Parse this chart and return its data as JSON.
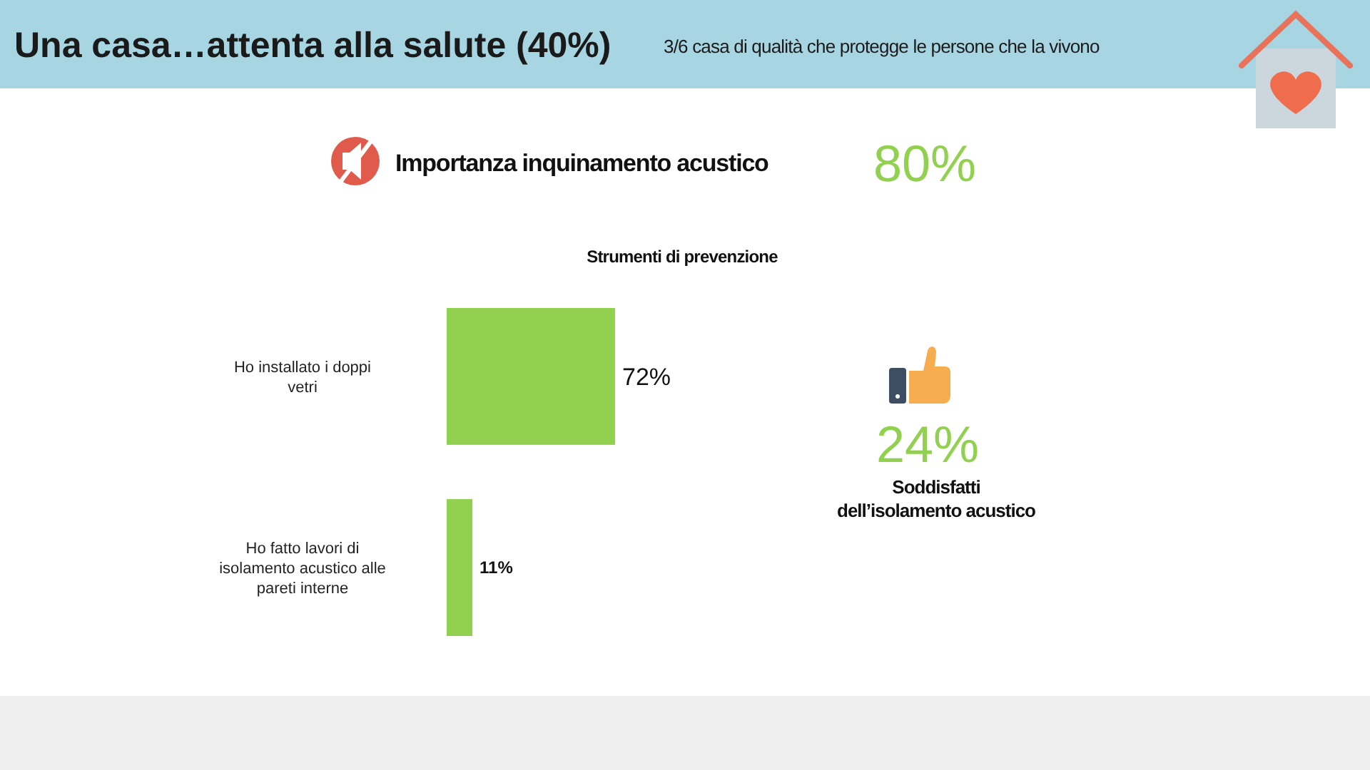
{
  "chart_data": {
    "type": "bar",
    "orientation": "horizontal",
    "title": "Una casa…attenta alla salute (40%)",
    "subtitle": "3/6 casa di qualità che protegge le persone che la vivono",
    "categories": [
      "Ho installato i doppi vetri",
      "Ho fatto lavori di isolamento acustico alle pareti interne"
    ],
    "values": [
      72,
      11
    ],
    "value_labels": [
      "72%",
      "11%"
    ],
    "color": "#92d050",
    "annotations": [
      "Strumenti di prevenzione",
      "Importanza inquinamento acustico",
      "80%",
      "24%",
      "Soddisfatti\ndell’isolamento acustico"
    ]
  }
}
